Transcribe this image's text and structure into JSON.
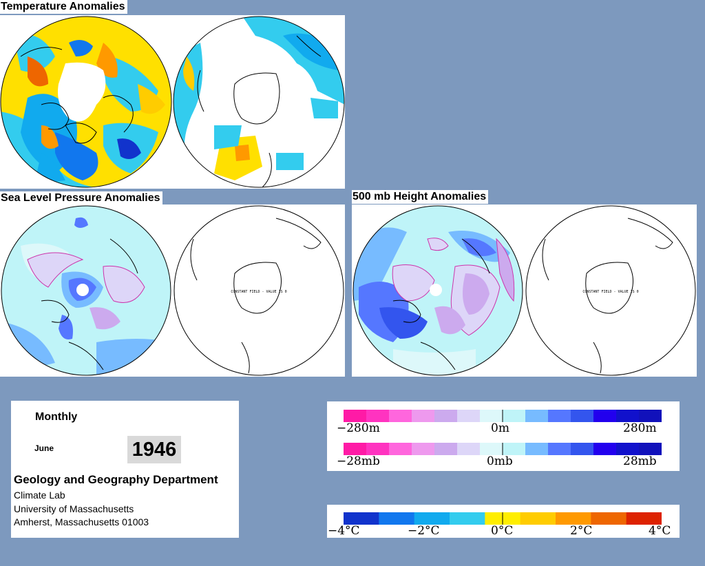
{
  "sections": {
    "temperature_title": "Temperature Anomalies",
    "slp_title": "Sea Level Pressure Anomalies",
    "height_title": "500 mb Height Anomalies"
  },
  "constant_field_label": "CONSTANT FIELD - VALUE IS 0",
  "info": {
    "period": "Monthly",
    "month": "June",
    "year": "1946",
    "department": "Geology and Geography Department",
    "lab": "Climate Lab",
    "university": "University of Massachusetts",
    "address": "Amherst, Massachusetts 01003"
  },
  "legends": {
    "height": {
      "min": "−280m",
      "mid": "0m",
      "max": "280m"
    },
    "pressure": {
      "min": "−28mb",
      "mid": "0mb",
      "max": "28mb"
    },
    "temperature": {
      "l1": "−4°C",
      "l2": "−2°C",
      "l3": "0°C",
      "l4": "2°C",
      "l5": "4°C"
    }
  },
  "colors": {
    "background": "#7d99be",
    "anomaly_scale": [
      "#ff1aa6",
      "#ff33c0",
      "#ff66dd",
      "#ee99ee",
      "#ccaaee",
      "#ddd6f8",
      "#ddf8fa",
      "#bff4f8",
      "#77bbff",
      "#5577ff",
      "#3355ee",
      "#2200ee",
      "#1111cc",
      "#1111bb"
    ],
    "temperature_scale": [
      "#1133cc",
      "#1177ee",
      "#11aaee",
      "#33ccee",
      "#ffee00",
      "#ffcc00",
      "#ff9900",
      "#ee6600",
      "#dd2200"
    ]
  }
}
